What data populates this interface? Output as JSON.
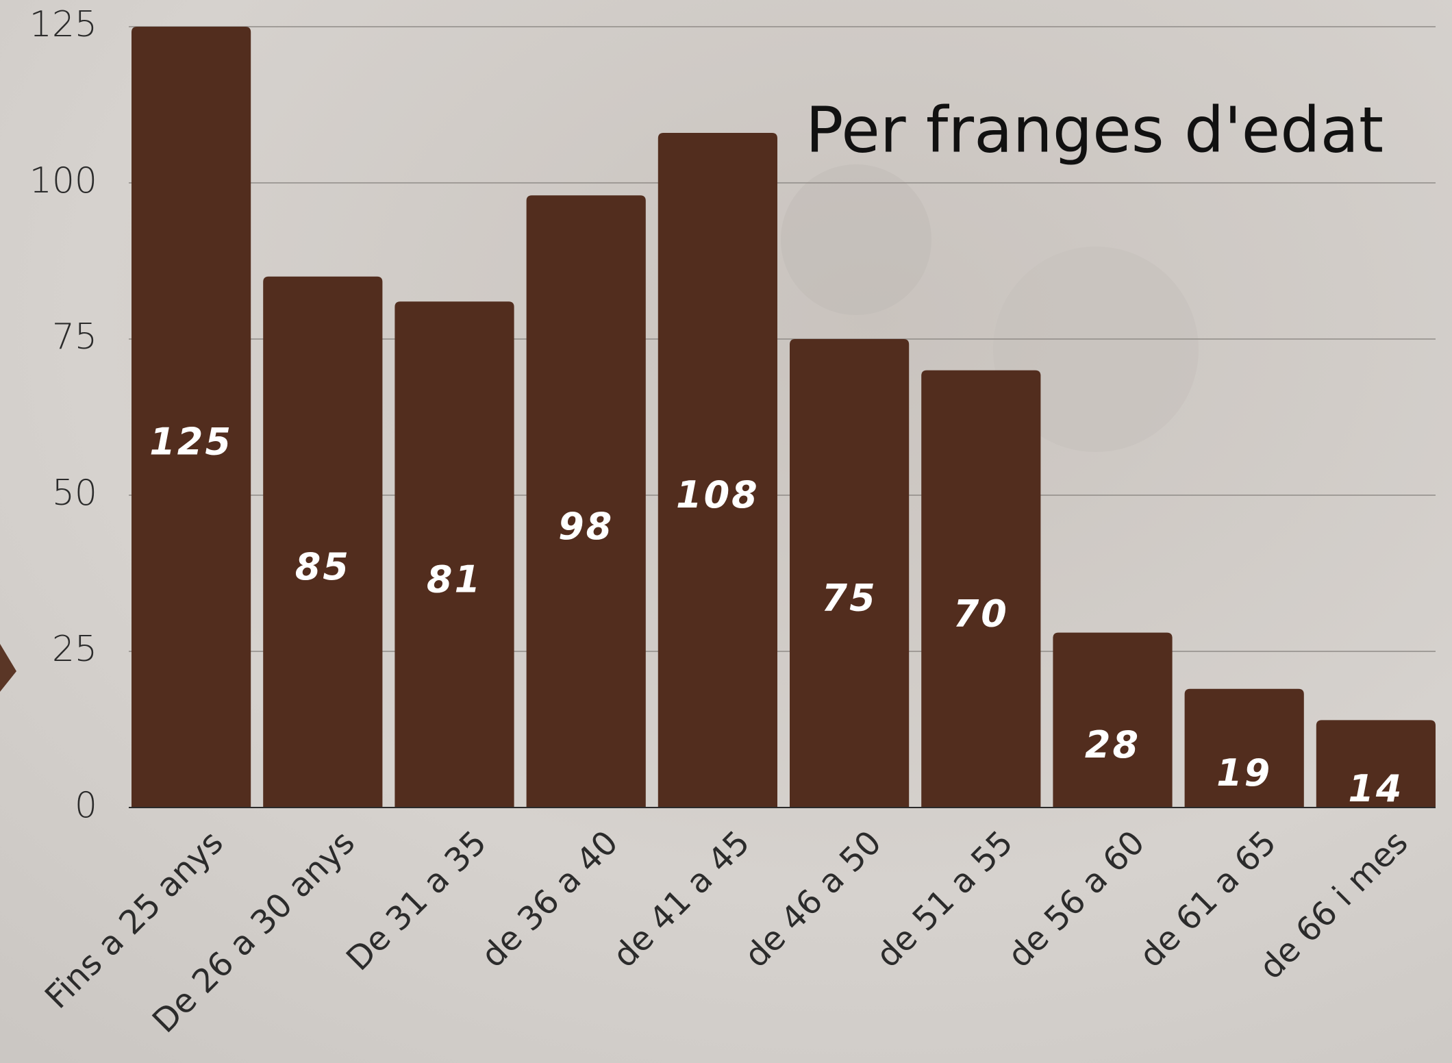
{
  "chart_data": {
    "type": "bar",
    "title": "Per franges d'edat",
    "categories": [
      "Fins a 25 anys",
      "De 26 a 30 anys",
      "De 31 a 35",
      "de 36 a 40",
      "de 41 a 45",
      "de 46 a 50",
      "de 51 a 55",
      "de 56 a 60",
      "de 61 a 65",
      "de 66 i mes"
    ],
    "values": [
      125,
      85,
      81,
      98,
      108,
      75,
      70,
      28,
      19,
      14
    ],
    "color": "#522d1e",
    "ylim": [
      0,
      125
    ],
    "yticks": [
      0,
      25,
      50,
      75,
      100,
      125
    ],
    "grid": true
  }
}
